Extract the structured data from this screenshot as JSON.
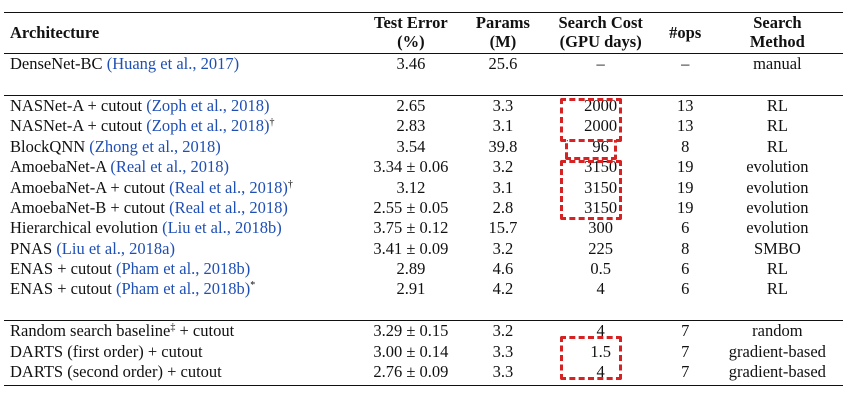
{
  "table": {
    "headers": {
      "architecture": "Architecture",
      "test_error_line1": "Test Error",
      "test_error_line2": "(%)",
      "params_line1": "Params",
      "params_line2": "(M)",
      "search_cost_line1": "Search Cost",
      "search_cost_line2": "(GPU days)",
      "ops": "#ops",
      "method_line1": "Search",
      "method_line2": "Method"
    },
    "group1": [
      {
        "arch": "DenseNet-BC ",
        "cite": "(Huang et al., 2017)",
        "mark": "",
        "error": "3.46",
        "params": "25.6",
        "cost": "–",
        "ops": "–",
        "method": "manual"
      }
    ],
    "group2": [
      {
        "arch": "NASNet-A + cutout ",
        "cite": "(Zoph et al., 2018)",
        "mark": "",
        "error": "2.65",
        "params": "3.3",
        "cost": "2000",
        "ops": "13",
        "method": "RL"
      },
      {
        "arch": "NASNet-A + cutout ",
        "cite": "(Zoph et al., 2018)",
        "mark": "†",
        "error": "2.83",
        "params": "3.1",
        "cost": "2000",
        "ops": "13",
        "method": "RL"
      },
      {
        "arch": "BlockQNN ",
        "cite": "(Zhong et al., 2018)",
        "mark": "",
        "error": "3.54",
        "params": "39.8",
        "cost": "96",
        "ops": "8",
        "method": "RL"
      },
      {
        "arch": "AmoebaNet-A ",
        "cite": "(Real et al., 2018)",
        "mark": "",
        "error": "3.34 ± 0.06",
        "params": "3.2",
        "cost": "3150",
        "ops": "19",
        "method": "evolution"
      },
      {
        "arch": "AmoebaNet-A + cutout ",
        "cite": "(Real et al., 2018)",
        "mark": "†",
        "error": "3.12",
        "params": "3.1",
        "cost": "3150",
        "ops": "19",
        "method": "evolution"
      },
      {
        "arch": "AmoebaNet-B + cutout ",
        "cite": "(Real et al., 2018)",
        "mark": "",
        "error": "2.55 ± 0.05",
        "params": "2.8",
        "cost": "3150",
        "ops": "19",
        "method": "evolution"
      },
      {
        "arch": "Hierarchical evolution ",
        "cite": "(Liu et al., 2018b)",
        "mark": "",
        "error": "3.75 ± 0.12",
        "params": "15.7",
        "cost": "300",
        "ops": "6",
        "method": "evolution"
      },
      {
        "arch": "PNAS ",
        "cite": "(Liu et al., 2018a)",
        "mark": "",
        "error": "3.41 ± 0.09",
        "params": "3.2",
        "cost": "225",
        "ops": "8",
        "method": "SMBO"
      },
      {
        "arch": "ENAS + cutout ",
        "cite": "(Pham et al., 2018b)",
        "mark": "",
        "error": "2.89",
        "params": "4.6",
        "cost": "0.5",
        "ops": "6",
        "method": "RL"
      },
      {
        "arch": "ENAS + cutout ",
        "cite": "(Pham et al., 2018b)",
        "mark": "*",
        "error": "2.91",
        "params": "4.2",
        "cost": "4",
        "ops": "6",
        "method": "RL"
      }
    ],
    "group3": [
      {
        "arch": "Random search baseline",
        "cite": "",
        "mark": "‡",
        "suffix": " + cutout",
        "error": "3.29 ± 0.15",
        "params": "3.2",
        "cost": "4",
        "ops": "7",
        "method": "random"
      },
      {
        "arch": "DARTS (first order) + cutout",
        "cite": "",
        "mark": "",
        "suffix": "",
        "error": "3.00 ± 0.14",
        "params": "3.3",
        "cost": "1.5",
        "ops": "7",
        "method": "gradient-based"
      },
      {
        "arch": "DARTS (second order) + cutout",
        "cite": "",
        "mark": "",
        "suffix": "",
        "error": "2.76 ± 0.09",
        "params": "3.3",
        "cost": "4",
        "ops": "7",
        "method": "gradient-based"
      }
    ]
  },
  "colors": {
    "citation": "#1f4fb5",
    "highlight_dash": "#d62222",
    "text": "#111111"
  }
}
